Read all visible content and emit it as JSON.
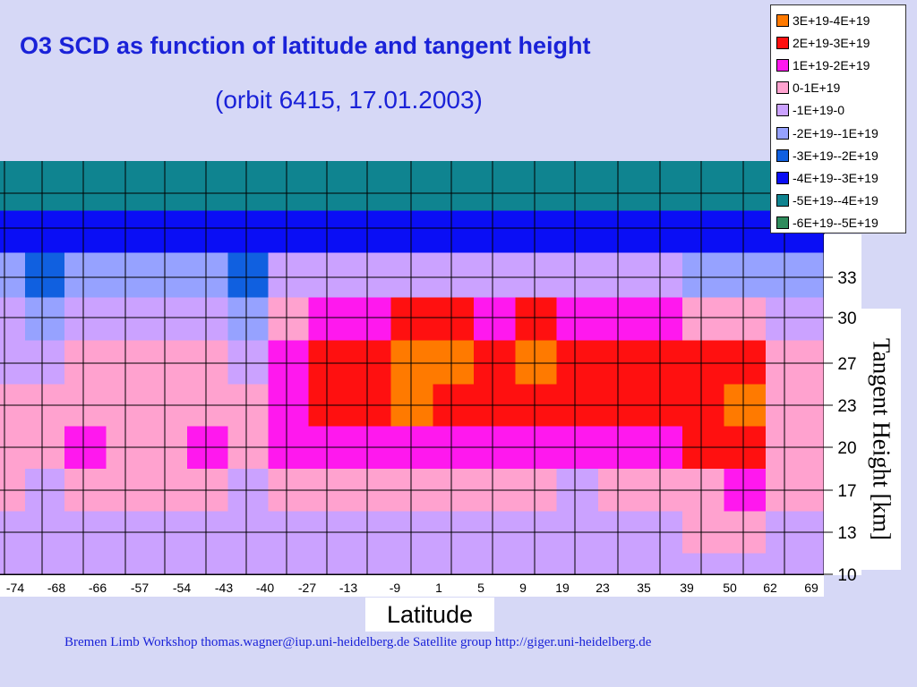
{
  "slide": {
    "title": "O3 SCD as function of latitude and tangent height",
    "subtitle": "(orbit 6415, 17.01.2003)",
    "footer": "Bremen Limb Workshop   thomas.wagner@iup.uni-heidelberg.de   Satellite group  http://giger.uni-heidelberg.de"
  },
  "chart_data": {
    "type": "heatmap",
    "title": "O3 SCD as function of latitude and tangent height",
    "subtitle": "(orbit 6415, 17.01.2003)",
    "xlabel": "Latitude",
    "ylabel": "Tangent Height [km]",
    "x_ticks": [
      "-74",
      "-68",
      "-66",
      "-57",
      "-54",
      "-43",
      "-40",
      "-27",
      "-13",
      "-9",
      "1",
      "5",
      "9",
      "19",
      "23",
      "35",
      "39",
      "50",
      "62",
      "69"
    ],
    "y_ticks": [
      "10",
      "13",
      "17",
      "20",
      "23",
      "27",
      "30",
      "33"
    ],
    "grid": true,
    "legend_position": "top-right",
    "legend": [
      {
        "label": "3E+19-4E+19",
        "color": "#ff7a00"
      },
      {
        "label": "2E+19-3E+19",
        "color": "#ff1010"
      },
      {
        "label": "1E+19-2E+19",
        "color": "#ff18ee"
      },
      {
        "label": "0-1E+19",
        "color": "#ffa2cf"
      },
      {
        "label": "-1E+19-0",
        "color": "#cba2ff"
      },
      {
        "label": "-2E+19--1E+19",
        "color": "#96a2ff"
      },
      {
        "label": "-3E+19--2E+19",
        "color": "#1060e0"
      },
      {
        "label": "-4E+19--3E+19",
        "color": "#0a0ef5"
      },
      {
        "label": "-5E+19--4E+19",
        "color": "#0f8490"
      },
      {
        "label": "-6E+19--5E+19",
        "color": "#2f8c5c"
      }
    ],
    "units_per_level": "1E+19",
    "heights_km": [
      10,
      13,
      17,
      20,
      23,
      27,
      30,
      33,
      36,
      39
    ],
    "values_by_height": [
      [
        -1.0,
        -0.6,
        -0.6,
        -0.6,
        -0.6,
        -0.6,
        -0.6,
        -0.6,
        -0.6,
        -0.6,
        -0.8,
        -0.8,
        -0.6,
        -0.6,
        -0.6,
        -0.9,
        -0.6,
        -0.6,
        -0.6,
        -0.6
      ],
      [
        -0.4,
        -0.8,
        -0.6,
        -0.4,
        -0.4,
        -0.4,
        -0.8,
        -0.3,
        -0.3,
        -0.3,
        -0.3,
        -0.3,
        -0.3,
        -0.3,
        -0.3,
        -0.3,
        -0.3,
        0.3,
        0.3,
        -0.3
      ],
      [
        0.4,
        -0.3,
        0.5,
        0.4,
        0.3,
        0.4,
        -0.4,
        0.3,
        0.3,
        0.3,
        0.3,
        0.3,
        0.3,
        0.3,
        -0.2,
        0.4,
        0.3,
        0.8,
        1.6,
        0.3
      ],
      [
        0.5,
        0.3,
        1.2,
        0.5,
        0.6,
        1.3,
        0.5,
        1.2,
        1.3,
        1.3,
        1.7,
        1.6,
        1.4,
        1.3,
        1.1,
        1.3,
        1.4,
        2.0,
        2.6,
        0.6
      ],
      [
        0.3,
        0.3,
        0.6,
        0.4,
        0.4,
        0.6,
        0.4,
        1.5,
        2.3,
        2.5,
        3.0,
        2.7,
        2.5,
        2.6,
        2.4,
        2.6,
        2.6,
        2.9,
        3.3,
        0.5
      ],
      [
        -0.5,
        -0.6,
        0.4,
        0.3,
        0.3,
        0.4,
        -0.4,
        1.3,
        2.4,
        2.4,
        3.1,
        3.0,
        2.5,
        3.1,
        2.5,
        2.6,
        2.3,
        2.3,
        2.2,
        0.2
      ],
      [
        -0.8,
        -1.4,
        -0.9,
        -0.4,
        -0.5,
        -0.6,
        -1.1,
        0.5,
        1.4,
        1.9,
        2.4,
        2.1,
        1.6,
        2.3,
        1.8,
        1.7,
        1.3,
        0.6,
        0.3,
        -0.8
      ],
      [
        -1.6,
        -2.8,
        -1.6,
        -1.5,
        -1.5,
        -1.5,
        -2.3,
        -0.9,
        -0.7,
        -0.6,
        -0.5,
        -0.6,
        -0.4,
        -0.6,
        -0.5,
        -0.3,
        -0.6,
        -1.4,
        -1.3,
        -1.5
      ],
      [
        -3.2,
        -4.0,
        -3.4,
        -3.5,
        -3.4,
        -3.4,
        -3.6,
        -3.3,
        -3.2,
        -3.2,
        -3.1,
        -3.1,
        -3.2,
        -3.3,
        -3.2,
        -3.2,
        -3.4,
        -3.6,
        -3.6,
        -3.4
      ],
      [
        -4.8,
        -5.0,
        -4.8,
        -4.7,
        -4.8,
        -4.8,
        -4.8,
        -4.6,
        -4.5,
        -4.6,
        -4.5,
        -4.4,
        -4.5,
        -4.6,
        -4.6,
        -4.5,
        -4.7,
        -4.8,
        -4.8,
        -4.8
      ]
    ]
  }
}
